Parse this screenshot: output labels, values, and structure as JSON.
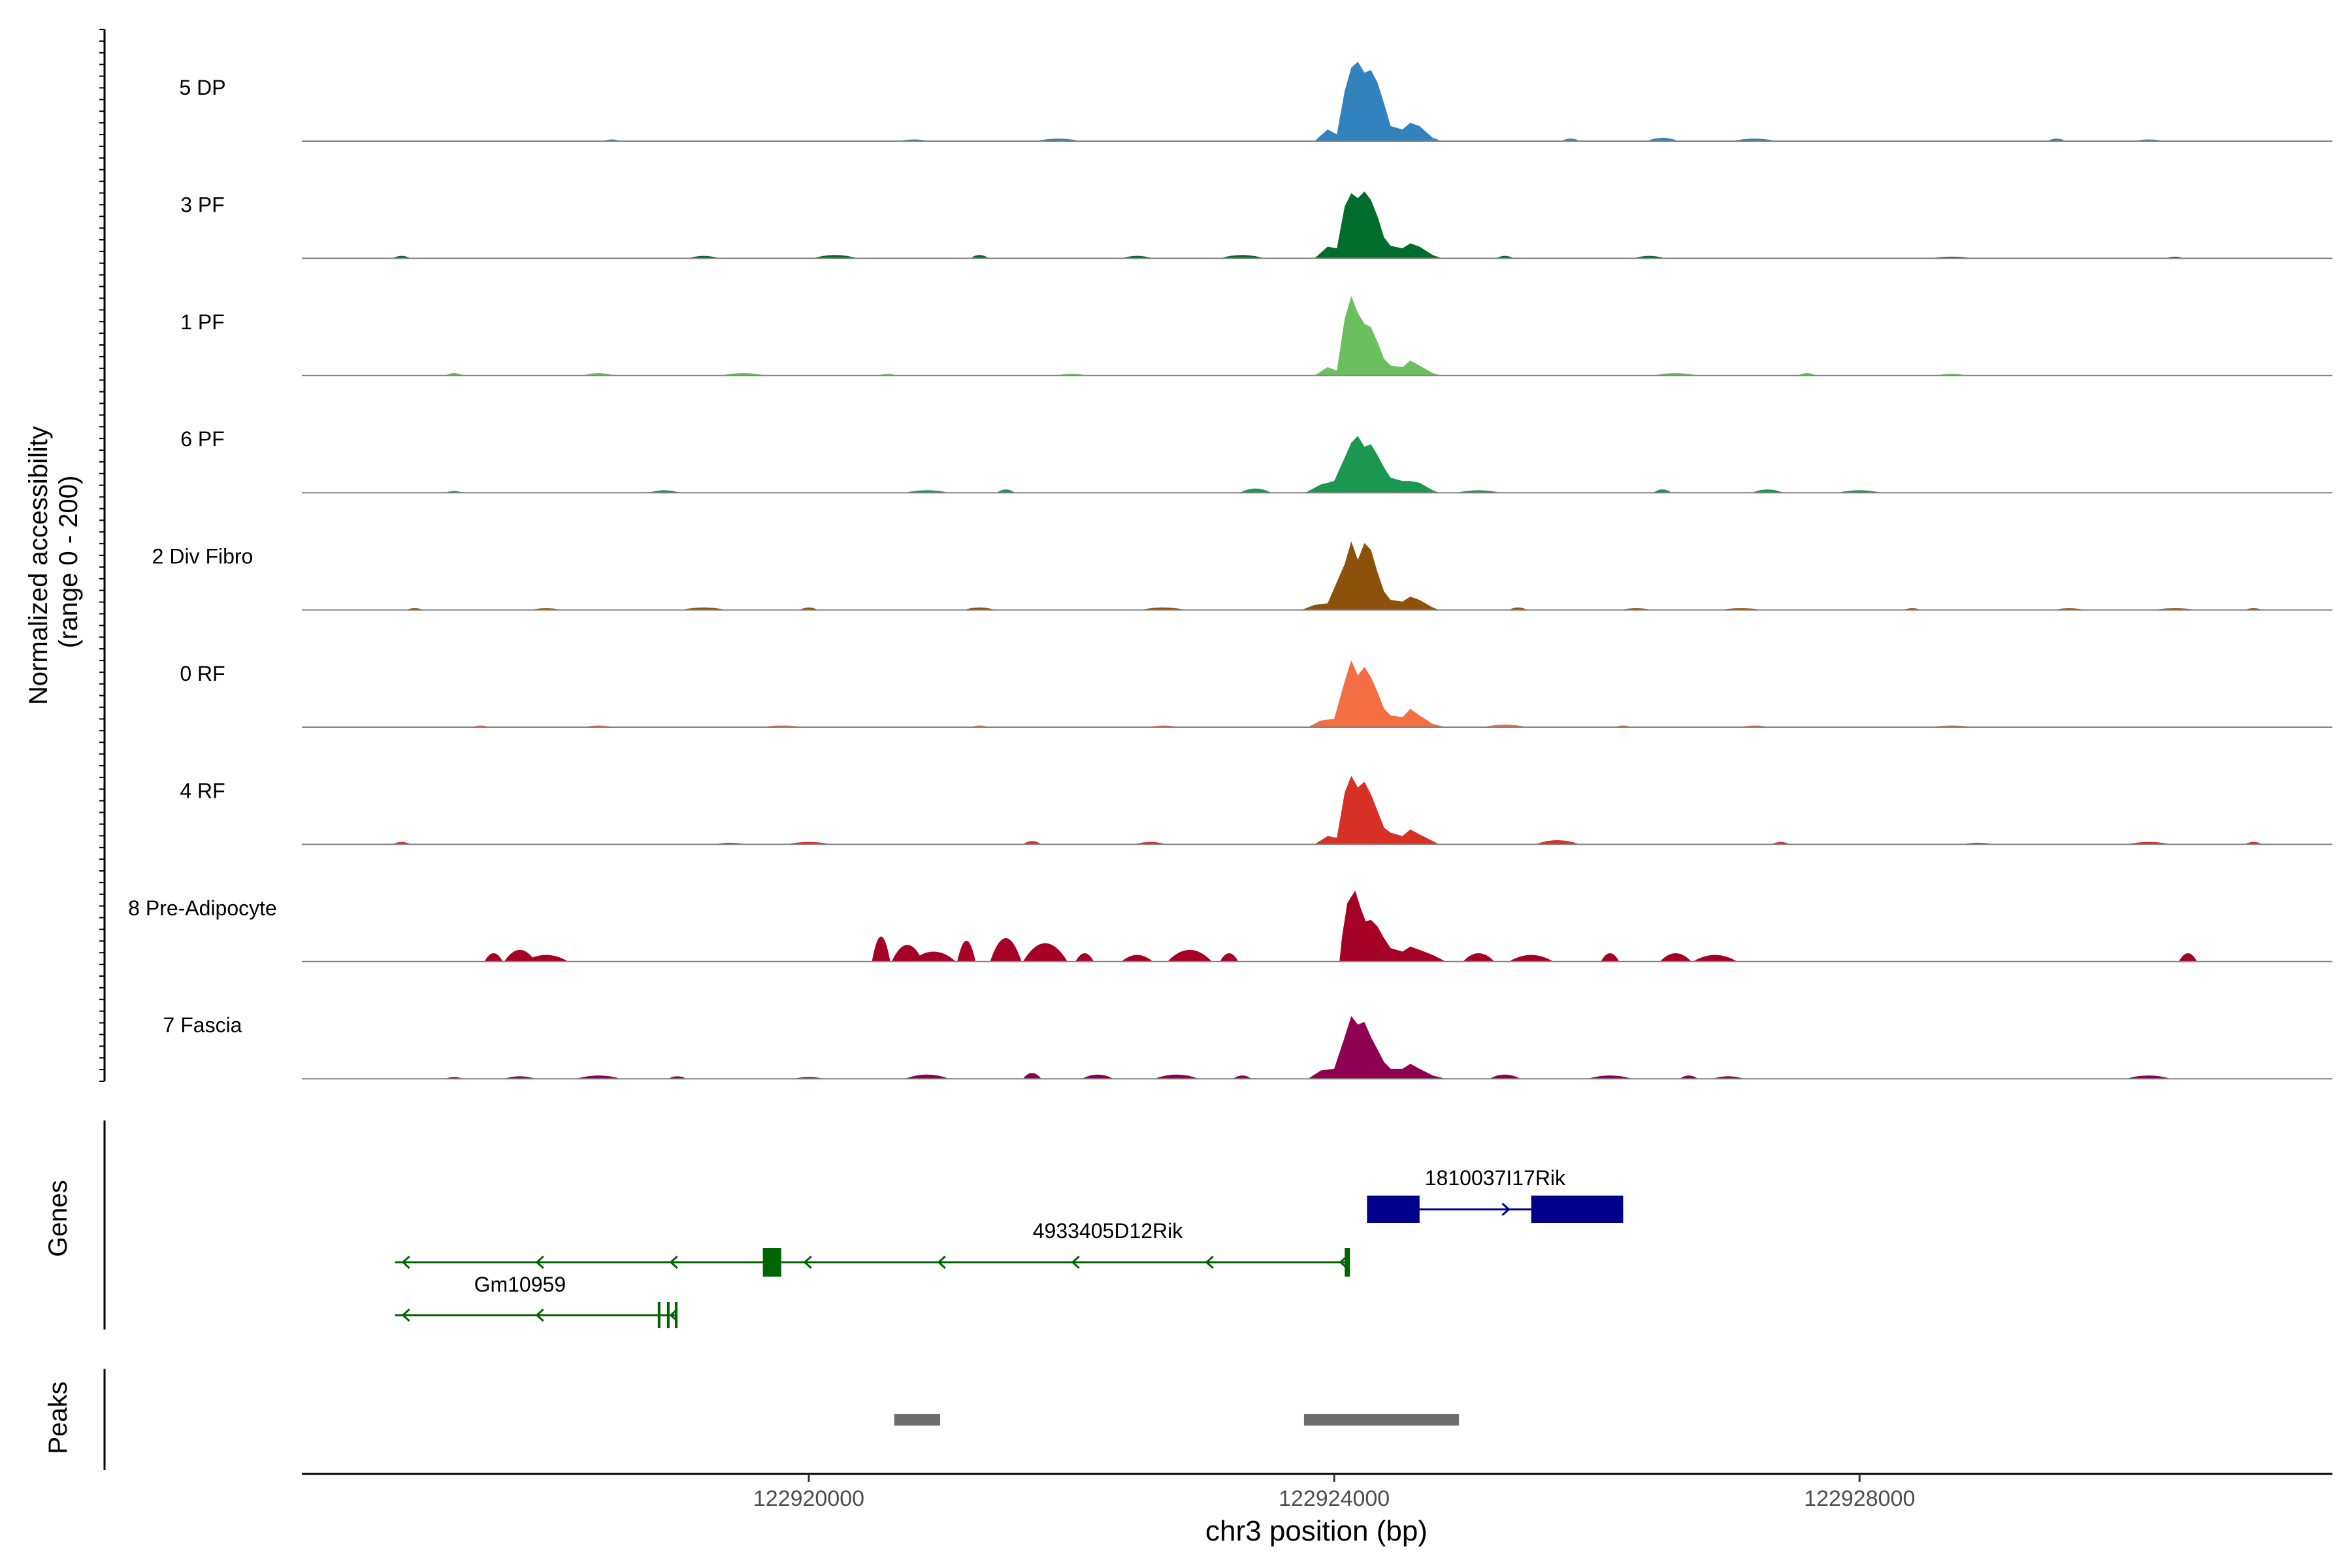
{
  "chart_data": {
    "type": "area",
    "title": "",
    "ylabel": "Normalized accessibility\n(range 0 - 200)",
    "ylabel_line1": "Normalized accessibility",
    "ylabel_line2": "(range 0 - 200)",
    "ylim": [
      0,
      200
    ],
    "xlabel": "chr3 position (bp)",
    "xlim": [
      122916140,
      122931600
    ],
    "x_ticks": [
      122920000,
      122924000,
      122928000
    ],
    "x_tick_labels": [
      "122920000",
      "122924000",
      "122928000"
    ],
    "series": [
      {
        "name": "5 DP",
        "color": "#3182BD",
        "peak_main": [
          [
            122923850,
            0
          ],
          [
            122923950,
            14
          ],
          [
            122924020,
            8
          ],
          [
            122924080,
            60
          ],
          [
            122924130,
            88
          ],
          [
            122924180,
            95
          ],
          [
            122924230,
            82
          ],
          [
            122924280,
            85
          ],
          [
            122924330,
            70
          ],
          [
            122924380,
            45
          ],
          [
            122924430,
            18
          ],
          [
            122924520,
            14
          ],
          [
            122924580,
            22
          ],
          [
            122924650,
            18
          ],
          [
            122924750,
            4
          ],
          [
            122924820,
            0
          ]
        ],
        "background": [
          [
            122918500,
            2
          ],
          [
            122920800,
            2
          ],
          [
            122921900,
            3
          ],
          [
            122925800,
            3
          ],
          [
            122926500,
            4
          ],
          [
            122927200,
            3
          ],
          [
            122929500,
            3
          ],
          [
            122930200,
            2
          ]
        ]
      },
      {
        "name": "3 PF",
        "color": "#006D2C",
        "peak_main": [
          [
            122923850,
            0
          ],
          [
            122923950,
            14
          ],
          [
            122924020,
            12
          ],
          [
            122924080,
            62
          ],
          [
            122924130,
            78
          ],
          [
            122924180,
            72
          ],
          [
            122924230,
            80
          ],
          [
            122924280,
            70
          ],
          [
            122924330,
            50
          ],
          [
            122924380,
            25
          ],
          [
            122924430,
            15
          ],
          [
            122924520,
            12
          ],
          [
            122924580,
            18
          ],
          [
            122924650,
            14
          ],
          [
            122924750,
            4
          ],
          [
            122924820,
            0
          ]
        ],
        "background": [
          [
            122916900,
            3
          ],
          [
            122919200,
            3
          ],
          [
            122920200,
            4
          ],
          [
            122921300,
            4
          ],
          [
            122922500,
            3
          ],
          [
            122923300,
            4
          ],
          [
            122925300,
            3
          ],
          [
            122926400,
            3
          ],
          [
            122928700,
            2
          ],
          [
            122930400,
            2
          ]
        ]
      },
      {
        "name": "1 PF",
        "color": "#6BBF5E",
        "peak_main": [
          [
            122923850,
            0
          ],
          [
            122923950,
            10
          ],
          [
            122924020,
            6
          ],
          [
            122924080,
            68
          ],
          [
            122924130,
            95
          ],
          [
            122924180,
            75
          ],
          [
            122924230,
            62
          ],
          [
            122924280,
            58
          ],
          [
            122924330,
            40
          ],
          [
            122924380,
            20
          ],
          [
            122924430,
            12
          ],
          [
            122924520,
            10
          ],
          [
            122924580,
            18
          ],
          [
            122924650,
            12
          ],
          [
            122924750,
            3
          ],
          [
            122924820,
            0
          ]
        ],
        "background": [
          [
            122917300,
            3
          ],
          [
            122918400,
            3
          ],
          [
            122919500,
            3
          ],
          [
            122920600,
            2
          ],
          [
            122922000,
            2
          ],
          [
            122926600,
            3
          ],
          [
            122927600,
            3
          ],
          [
            122928700,
            2
          ]
        ]
      },
      {
        "name": "6 PF",
        "color": "#1A9850",
        "peak_main": [
          [
            122923780,
            0
          ],
          [
            122923900,
            10
          ],
          [
            122924000,
            14
          ],
          [
            122924080,
            42
          ],
          [
            122924130,
            60
          ],
          [
            122924180,
            68
          ],
          [
            122924230,
            55
          ],
          [
            122924280,
            58
          ],
          [
            122924330,
            45
          ],
          [
            122924380,
            30
          ],
          [
            122924430,
            18
          ],
          [
            122924520,
            14
          ],
          [
            122924580,
            14
          ],
          [
            122924650,
            12
          ],
          [
            122924750,
            3
          ],
          [
            122924800,
            0
          ]
        ],
        "background": [
          [
            122917300,
            2
          ],
          [
            122918900,
            3
          ],
          [
            122920900,
            3
          ],
          [
            122921500,
            4
          ],
          [
            122923400,
            5
          ],
          [
            122925100,
            3
          ],
          [
            122926500,
            4
          ],
          [
            122927300,
            4
          ],
          [
            122928000,
            3
          ]
        ]
      },
      {
        "name": "2 Div Fibro",
        "color": "#8C510A",
        "peak_main": [
          [
            122923750,
            0
          ],
          [
            122923850,
            6
          ],
          [
            122923950,
            8
          ],
          [
            122924080,
            55
          ],
          [
            122924130,
            82
          ],
          [
            122924180,
            60
          ],
          [
            122924230,
            80
          ],
          [
            122924280,
            72
          ],
          [
            122924330,
            45
          ],
          [
            122924380,
            22
          ],
          [
            122924430,
            12
          ],
          [
            122924520,
            10
          ],
          [
            122924580,
            16
          ],
          [
            122924650,
            12
          ],
          [
            122924750,
            3
          ],
          [
            122924800,
            0
          ]
        ],
        "background": [
          [
            122917000,
            2
          ],
          [
            122918000,
            2
          ],
          [
            122919200,
            3
          ],
          [
            122920000,
            3
          ],
          [
            122921300,
            3
          ],
          [
            122922700,
            3
          ],
          [
            122925400,
            3
          ],
          [
            122926300,
            2
          ],
          [
            122927100,
            2
          ],
          [
            122928400,
            2
          ],
          [
            122929600,
            2
          ],
          [
            122930400,
            2
          ],
          [
            122931000,
            2
          ]
        ]
      },
      {
        "name": "0 RF",
        "color": "#F46D43",
        "peak_main": [
          [
            122923800,
            0
          ],
          [
            122923900,
            8
          ],
          [
            122924000,
            10
          ],
          [
            122924080,
            55
          ],
          [
            122924130,
            80
          ],
          [
            122924180,
            62
          ],
          [
            122924230,
            72
          ],
          [
            122924280,
            60
          ],
          [
            122924330,
            42
          ],
          [
            122924380,
            22
          ],
          [
            122924430,
            14
          ],
          [
            122924520,
            12
          ],
          [
            122924580,
            22
          ],
          [
            122924650,
            14
          ],
          [
            122924750,
            4
          ],
          [
            122924850,
            0
          ]
        ],
        "background": [
          [
            122917500,
            2
          ],
          [
            122918400,
            2
          ],
          [
            122919800,
            2
          ],
          [
            122921300,
            2
          ],
          [
            122922700,
            2
          ],
          [
            122925300,
            3
          ],
          [
            122926200,
            2
          ],
          [
            122927200,
            2
          ],
          [
            122928700,
            2
          ]
        ]
      },
      {
        "name": "4 RF",
        "color": "#D73027",
        "peak_main": [
          [
            122923850,
            0
          ],
          [
            122923950,
            10
          ],
          [
            122924020,
            8
          ],
          [
            122924080,
            62
          ],
          [
            122924130,
            82
          ],
          [
            122924180,
            68
          ],
          [
            122924230,
            75
          ],
          [
            122924280,
            60
          ],
          [
            122924330,
            40
          ],
          [
            122924380,
            20
          ],
          [
            122924430,
            14
          ],
          [
            122924520,
            10
          ],
          [
            122924580,
            18
          ],
          [
            122924650,
            12
          ],
          [
            122924750,
            4
          ],
          [
            122924800,
            0
          ]
        ],
        "background": [
          [
            122916900,
            3
          ],
          [
            122919400,
            2
          ],
          [
            122920000,
            3
          ],
          [
            122921700,
            4
          ],
          [
            122922600,
            3
          ],
          [
            122925700,
            5
          ],
          [
            122927400,
            3
          ],
          [
            122928900,
            2
          ],
          [
            122930200,
            3
          ],
          [
            122931000,
            3
          ]
        ]
      },
      {
        "name": "8 Pre-Adipocyte",
        "color": "#A50026",
        "peak_main": [
          [
            122924040,
            0
          ],
          [
            122924060,
            30
          ],
          [
            122924100,
            70
          ],
          [
            122924160,
            85
          ],
          [
            122924200,
            65
          ],
          [
            122924240,
            48
          ],
          [
            122924280,
            50
          ],
          [
            122924330,
            42
          ],
          [
            122924380,
            28
          ],
          [
            122924430,
            16
          ],
          [
            122924520,
            12
          ],
          [
            122924580,
            18
          ],
          [
            122924650,
            14
          ],
          [
            122924750,
            8
          ],
          [
            122924850,
            0
          ]
        ],
        "background": [
          [
            122917600,
            10
          ],
          [
            122917800,
            14
          ],
          [
            122918000,
            8
          ],
          [
            122920550,
            30
          ],
          [
            122920750,
            20
          ],
          [
            122920950,
            12
          ],
          [
            122921200,
            25
          ],
          [
            122921500,
            28
          ],
          [
            122921800,
            22
          ],
          [
            122922100,
            10
          ],
          [
            122922500,
            8
          ],
          [
            122922900,
            14
          ],
          [
            122923200,
            10
          ],
          [
            122925100,
            10
          ],
          [
            122925500,
            8
          ],
          [
            122926100,
            10
          ],
          [
            122926600,
            10
          ],
          [
            122926900,
            8
          ],
          [
            122930500,
            10
          ]
        ]
      },
      {
        "name": "7 Fascia",
        "color": "#8E0152",
        "peak_main": [
          [
            122923800,
            0
          ],
          [
            122923900,
            10
          ],
          [
            122924000,
            12
          ],
          [
            122924080,
            50
          ],
          [
            122924130,
            75
          ],
          [
            122924180,
            65
          ],
          [
            122924230,
            68
          ],
          [
            122924280,
            50
          ],
          [
            122924330,
            35
          ],
          [
            122924380,
            20
          ],
          [
            122924430,
            12
          ],
          [
            122924520,
            12
          ],
          [
            122924580,
            18
          ],
          [
            122924650,
            12
          ],
          [
            122924750,
            4
          ],
          [
            122924850,
            0
          ]
        ],
        "background": [
          [
            122917300,
            2
          ],
          [
            122917800,
            3
          ],
          [
            122918400,
            4
          ],
          [
            122919000,
            3
          ],
          [
            122920000,
            2
          ],
          [
            122920900,
            5
          ],
          [
            122921700,
            7
          ],
          [
            122922200,
            5
          ],
          [
            122922800,
            5
          ],
          [
            122923300,
            4
          ],
          [
            122925300,
            5
          ],
          [
            122926100,
            4
          ],
          [
            122926700,
            4
          ],
          [
            122927000,
            3
          ],
          [
            122930200,
            4
          ]
        ]
      }
    ],
    "genes": [
      {
        "name": "1810037I17Rik",
        "strand": "+",
        "color": "#00008B",
        "row": 0,
        "start": 122924250,
        "end": 122926200,
        "exons": [
          [
            122924250,
            122924650
          ],
          [
            122925500,
            122926200
          ]
        ]
      },
      {
        "name": "4933405D12Rik",
        "strand": "-",
        "color": "#006400",
        "row": 1,
        "start": 122916850,
        "end": 122924120,
        "exons": [
          [
            122919650,
            122919790
          ],
          [
            122924080,
            122924120
          ]
        ]
      },
      {
        "name": "Gm10959",
        "strand": "-",
        "color": "#006400",
        "row": 2,
        "start": 122916850,
        "end": 122919000,
        "exons": [
          [
            122918850,
            122918870
          ],
          [
            122918920,
            122918940
          ],
          [
            122918980,
            122919000
          ]
        ]
      }
    ],
    "peaks": [
      [
        122920650,
        122921000
      ],
      [
        122923770,
        122924950
      ]
    ],
    "track_labels": {
      "genes": "Genes",
      "peaks": "Peaks"
    }
  }
}
